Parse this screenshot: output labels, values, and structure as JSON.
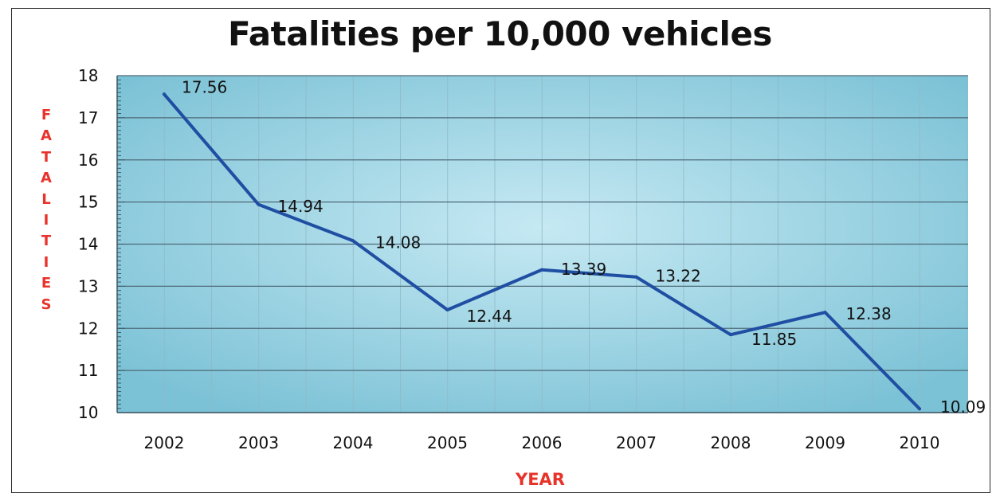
{
  "chart_data": {
    "type": "line",
    "title": "Fatalities per 10,000 vehicles",
    "xlabel": "YEAR",
    "ylabel": "FATALITIES",
    "categories": [
      "2002",
      "2003",
      "2004",
      "2005",
      "2006",
      "2007",
      "2008",
      "2009",
      "2010"
    ],
    "series": [
      {
        "values": [
          17.56,
          14.94,
          14.08,
          12.44,
          13.39,
          13.22,
          11.85,
          12.38,
          10.09
        ]
      }
    ],
    "data_labels": [
      "17.56",
      "14.94",
      "14.08",
      "12.44",
      "13.39",
      "13.22",
      "11.85",
      "12.38",
      "10.09"
    ],
    "y_ticks": [
      "10",
      "11",
      "12",
      "13",
      "14",
      "15",
      "16",
      "17",
      "18"
    ],
    "ylim": [
      10,
      18
    ],
    "grid": true,
    "colors": {
      "line": "#1f4ea3",
      "axis_title": "#e8332a",
      "plot_bg_center": "#bfe6f1",
      "plot_bg_edge": "#7dc3d7"
    }
  }
}
